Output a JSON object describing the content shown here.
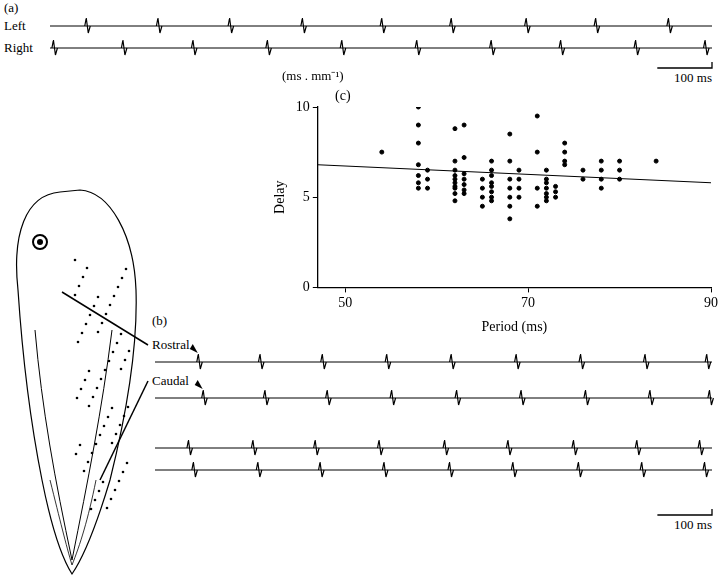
{
  "panels": [
    {
      "label": "(a)",
      "xlim": [
        0,
        1210
      ],
      "traces": [
        {
          "name": "Left",
          "spikes": [
            69,
            200,
            331,
            464,
            609,
            736,
            873,
            1000,
            1133
          ]
        },
        {
          "name": "Right",
          "spikes": [
            9,
            136,
            264,
            400,
            536,
            673,
            809,
            936,
            1073,
            1200
          ]
        }
      ],
      "scale_bar": {
        "value": 100,
        "label": "100 ms"
      }
    },
    {
      "label": "(b)",
      "xlim": [
        0,
        1020
      ],
      "row_labels": [
        "Rostral",
        "Caudal"
      ],
      "sweeps": [
        {
          "traces": [
            {
              "spikes": [
                82,
                195,
                309,
                427,
                545,
                664,
                782,
                900,
                1013
              ]
            },
            {
              "spikes": [
                91,
                204,
                318,
                436,
                555,
                673,
                791,
                909,
                1018
              ]
            }
          ]
        },
        {
          "traces": [
            {
              "spikes": [
                64,
                182,
                296,
                413,
                533,
                649,
                769,
                885,
                1000
              ]
            },
            {
              "spikes": [
                73,
                191,
                305,
                422,
                542,
                658,
                778,
                894,
                1009
              ]
            }
          ]
        }
      ],
      "scale_bar": {
        "value": 100,
        "label": "100 ms"
      }
    }
  ],
  "chart_data": {
    "type": "scatter",
    "panel": "(c)",
    "x_label": "Period (ms)",
    "y_label": "Delay",
    "y_unit": "(ms . mm⁻¹)",
    "x": [
      54,
      58,
      58,
      58,
      58,
      58,
      58,
      58,
      59,
      59,
      59,
      62,
      62,
      62,
      62,
      62,
      62,
      62,
      62,
      62,
      62,
      63,
      63,
      63,
      63,
      63,
      63,
      63,
      65,
      65,
      65,
      65,
      66,
      66,
      66,
      66,
      66,
      66,
      66,
      66,
      68,
      68,
      68,
      68,
      68,
      68,
      68,
      69,
      69,
      69,
      69,
      71,
      71,
      71,
      71,
      72,
      72,
      72,
      72,
      72,
      72,
      72,
      73,
      73,
      73,
      74,
      74,
      74,
      74,
      76,
      76,
      78,
      78,
      78,
      78,
      80,
      80,
      80,
      84
    ],
    "values": [
      7.5,
      8,
      6.8,
      6.2,
      5.8,
      5.5,
      9,
      10,
      6.5,
      6,
      5.5,
      8.8,
      7,
      6.5,
      6.2,
      6,
      5.8,
      5.6,
      5.5,
      5.2,
      4.8,
      9,
      7.2,
      6.3,
      6,
      5.7,
      5.4,
      5.2,
      6,
      5.5,
      5,
      4.5,
      7,
      6.5,
      6.2,
      5.8,
      5.6,
      5.3,
      5,
      4.8,
      8.5,
      7,
      6,
      5.5,
      5,
      4.5,
      3.8,
      6.5,
      6,
      5.5,
      5,
      9.5,
      7.5,
      5.5,
      4.5,
      6.5,
      6,
      5.8,
      5.5,
      5.2,
      5,
      4.8,
      5.6,
      5.3,
      5,
      8,
      7.5,
      7,
      6.8,
      6.5,
      6,
      7,
      6.5,
      6,
      5.5,
      7,
      6.5,
      6,
      7
    ],
    "fit": {
      "x": [
        47,
        90
      ],
      "values": [
        6.8,
        5.8
      ]
    },
    "xlim": [
      47,
      90
    ],
    "ylim": [
      0,
      10
    ],
    "xticks": [
      50,
      70,
      90
    ],
    "yticks": [
      0,
      5,
      10
    ],
    "grid": false,
    "marker": "circle",
    "color": "#000000"
  }
}
